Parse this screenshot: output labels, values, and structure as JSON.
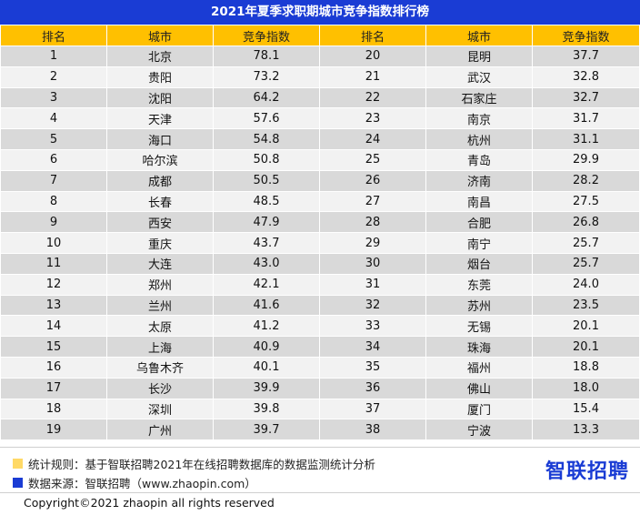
{
  "title": "2021年夏季求职期城市竞争指数排行榜",
  "headers": [
    "排名",
    "城市",
    "竞争指数",
    "排名",
    "城市",
    "竞争指数"
  ],
  "left": [
    {
      "rank": "1",
      "city": "北京",
      "index": "78.1"
    },
    {
      "rank": "2",
      "city": "贵阳",
      "index": "73.2"
    },
    {
      "rank": "3",
      "city": "沈阳",
      "index": "64.2"
    },
    {
      "rank": "4",
      "city": "天津",
      "index": "57.6"
    },
    {
      "rank": "5",
      "city": "海口",
      "index": "54.8"
    },
    {
      "rank": "6",
      "city": "哈尔滨",
      "index": "50.8"
    },
    {
      "rank": "7",
      "city": "成都",
      "index": "50.5"
    },
    {
      "rank": "8",
      "city": "长春",
      "index": "48.5"
    },
    {
      "rank": "9",
      "city": "西安",
      "index": "47.9"
    },
    {
      "rank": "10",
      "city": "重庆",
      "index": "43.7"
    },
    {
      "rank": "11",
      "city": "大连",
      "index": "43.0"
    },
    {
      "rank": "12",
      "city": "郑州",
      "index": "42.1"
    },
    {
      "rank": "13",
      "city": "兰州",
      "index": "41.6"
    },
    {
      "rank": "14",
      "city": "太原",
      "index": "41.2"
    },
    {
      "rank": "15",
      "city": "上海",
      "index": "40.9"
    },
    {
      "rank": "16",
      "city": "乌鲁木齐",
      "index": "40.1"
    },
    {
      "rank": "17",
      "city": "长沙",
      "index": "39.9"
    },
    {
      "rank": "18",
      "city": "深圳",
      "index": "39.8"
    },
    {
      "rank": "19",
      "city": "广州",
      "index": "39.7"
    }
  ],
  "right": [
    {
      "rank": "20",
      "city": "昆明",
      "index": "37.7"
    },
    {
      "rank": "21",
      "city": "武汉",
      "index": "32.8"
    },
    {
      "rank": "22",
      "city": "石家庄",
      "index": "32.7"
    },
    {
      "rank": "23",
      "city": "南京",
      "index": "31.7"
    },
    {
      "rank": "24",
      "city": "杭州",
      "index": "31.1"
    },
    {
      "rank": "25",
      "city": "青岛",
      "index": "29.9"
    },
    {
      "rank": "26",
      "city": "济南",
      "index": "28.2"
    },
    {
      "rank": "27",
      "city": "南昌",
      "index": "27.5"
    },
    {
      "rank": "28",
      "city": "合肥",
      "index": "26.8"
    },
    {
      "rank": "29",
      "city": "南宁",
      "index": "25.7"
    },
    {
      "rank": "30",
      "city": "烟台",
      "index": "25.7"
    },
    {
      "rank": "31",
      "city": "东莞",
      "index": "24.0"
    },
    {
      "rank": "32",
      "city": "苏州",
      "index": "23.5"
    },
    {
      "rank": "33",
      "city": "无锡",
      "index": "20.1"
    },
    {
      "rank": "34",
      "city": "珠海",
      "index": "20.1"
    },
    {
      "rank": "35",
      "city": "福州",
      "index": "18.8"
    },
    {
      "rank": "36",
      "city": "佛山",
      "index": "18.0"
    },
    {
      "rank": "37",
      "city": "厦门",
      "index": "15.4"
    },
    {
      "rank": "38",
      "city": "宁波",
      "index": "13.3"
    }
  ],
  "notes": {
    "rule": "统计规则：基于智联招聘2021年在线招聘数据库的数据监测统计分析",
    "source": "数据来源：智联招聘（www.zhaopin.com）"
  },
  "logo": "智联招聘",
  "copyright": "Copyright©2021 zhaopin all rights reserved",
  "colors": {
    "title_bg": "#1a3cd4",
    "header_bg": "#ffc000",
    "row_dark": "#d9d9d9",
    "row_light": "#f2f2f2",
    "note_rule_square": "#ffd966",
    "note_source_square": "#1a3cd4",
    "logo": "#1a3cd4"
  }
}
